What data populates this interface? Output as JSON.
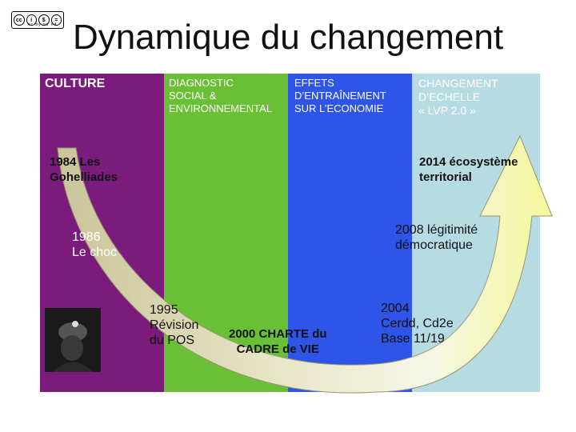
{
  "title": "Dynamique du changement",
  "license_badge": "cc by nc nd",
  "columns": {
    "culture": "CULTURE",
    "diagnostic": "DIAGNOSTIC\nSOCIAL &\nENVIRONNEMENTAL",
    "effets": "EFFETS\nD’ENTRAÎNEMENT\nSUR L’ECONOMIE",
    "changement": "CHANGEMENT\nD’ECHELLE\n« LVP 2.0 »"
  },
  "milestones": {
    "m1984": "1984 Les\nGohelliades",
    "m1986": "1986\nLe choc",
    "m1995": "1995\nRévision\ndu POS",
    "m2000": "2000 CHARTE du\nCADRE de VIE",
    "m2004": "2004\nCerdd, Cd2e\nBase 11/19",
    "m2008": "2008 légitimité\ndémocratique",
    "m2014": "2014 écosystème\nterritorial"
  },
  "colors": {
    "culture": "#7b1b7b",
    "diagnostic": "#6ac034",
    "effets": "#2e54e8",
    "changement": "#b6dbe3"
  }
}
